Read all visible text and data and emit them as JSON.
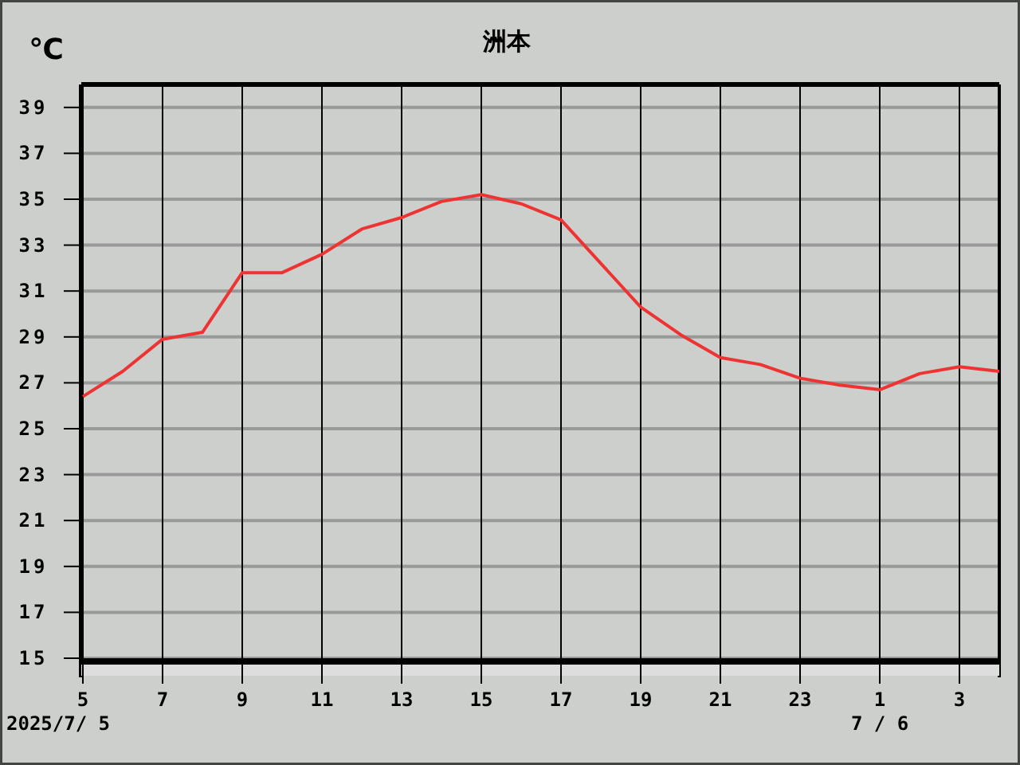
{
  "chart_data": {
    "type": "line",
    "title": "洲本",
    "ylabel": "℃",
    "x": [
      "2025-07-05T05:00",
      "2025-07-05T06:00",
      "2025-07-05T07:00",
      "2025-07-05T08:00",
      "2025-07-05T09:00",
      "2025-07-05T10:00",
      "2025-07-05T11:00",
      "2025-07-05T12:00",
      "2025-07-05T13:00",
      "2025-07-05T14:00",
      "2025-07-05T15:00",
      "2025-07-05T16:00",
      "2025-07-05T17:00",
      "2025-07-05T18:00",
      "2025-07-05T19:00",
      "2025-07-05T20:00",
      "2025-07-05T21:00",
      "2025-07-05T22:00",
      "2025-07-05T23:00",
      "2025-07-06T00:00",
      "2025-07-06T01:00",
      "2025-07-06T02:00",
      "2025-07-06T03:00",
      "2025-07-06T04:00"
    ],
    "series": [
      {
        "color": "#ee3333",
        "values": [
          26.4,
          27.5,
          28.9,
          29.2,
          31.8,
          31.8,
          32.6,
          33.7,
          34.2,
          34.9,
          35.2,
          34.8,
          34.1,
          32.2,
          30.3,
          29.1,
          28.1,
          27.8,
          27.2,
          26.9,
          26.7,
          27.4,
          27.7,
          27.5
        ]
      }
    ],
    "xlim": [
      "2025-07-05T05:00",
      "2025-07-06T04:00"
    ],
    "ylim": [
      15,
      40
    ],
    "xticks": [
      {
        "value": "2025-07-05T05:00",
        "label": "5"
      },
      {
        "value": "2025-07-05T07:00",
        "label": "7"
      },
      {
        "value": "2025-07-05T09:00",
        "label": "9"
      },
      {
        "value": "2025-07-05T11:00",
        "label": "11"
      },
      {
        "value": "2025-07-05T13:00",
        "label": "13"
      },
      {
        "value": "2025-07-05T15:00",
        "label": "15"
      },
      {
        "value": "2025-07-05T17:00",
        "label": "17"
      },
      {
        "value": "2025-07-05T19:00",
        "label": "19"
      },
      {
        "value": "2025-07-05T21:00",
        "label": "21"
      },
      {
        "value": "2025-07-05T23:00",
        "label": "23"
      },
      {
        "value": "2025-07-06T01:00",
        "label": "1"
      },
      {
        "value": "2025-07-06T03:00",
        "label": "3"
      }
    ],
    "yticks": [
      15,
      17,
      19,
      21,
      23,
      25,
      27,
      29,
      31,
      33,
      35,
      37,
      39
    ],
    "grid": true,
    "marker": "none",
    "line_style": "solid",
    "annotations": [
      "2025/7/ 5",
      "7 / 6"
    ]
  }
}
